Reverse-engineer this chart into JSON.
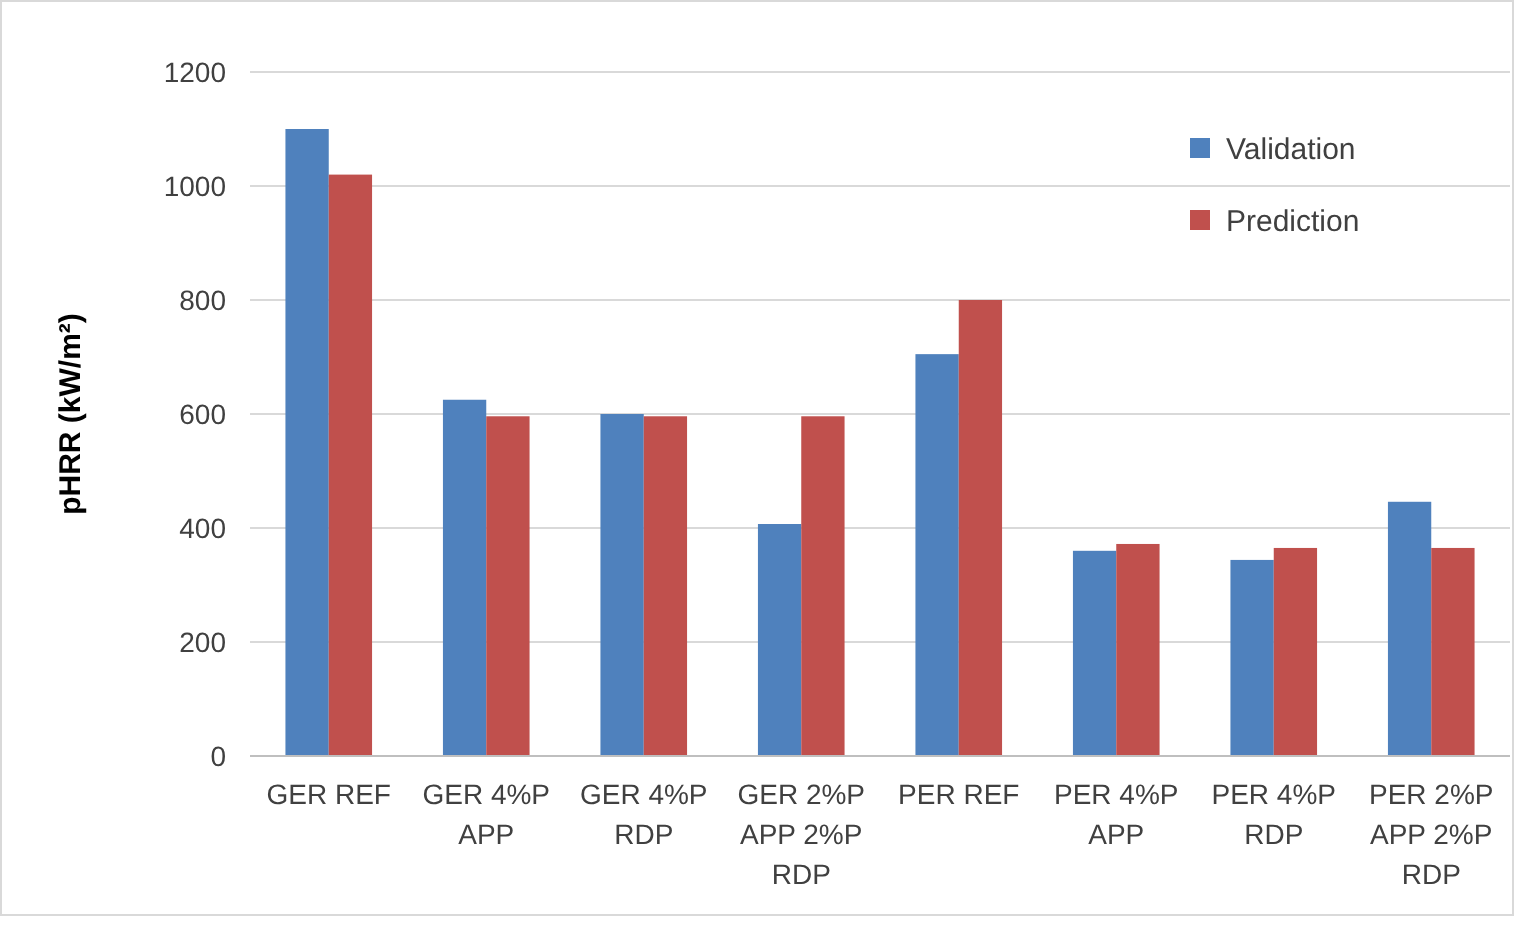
{
  "chart_data": {
    "type": "bar",
    "ylabel": "pHRR (kW/m²)",
    "categories": [
      "GER REF",
      "GER 4%P APP",
      "GER 4%P RDP",
      "GER 2%P APP 2%P RDP",
      "PER REF",
      "PER 4%P APP",
      "PER 4%P RDP",
      "PER 2%P APP 2%P RDP"
    ],
    "series": [
      {
        "name": "Validation",
        "color": "#4f81bd",
        "values": [
          1100,
          625,
          600,
          407,
          705,
          360,
          344,
          446
        ]
      },
      {
        "name": "Prediction",
        "color": "#c0504d",
        "values": [
          1020,
          596,
          596,
          596,
          800,
          372,
          365,
          365
        ]
      }
    ],
    "ylim": [
      0,
      1200
    ],
    "yticks": [
      0,
      200,
      400,
      600,
      800,
      1000,
      1200
    ],
    "grid": "y",
    "legend": "top right"
  }
}
